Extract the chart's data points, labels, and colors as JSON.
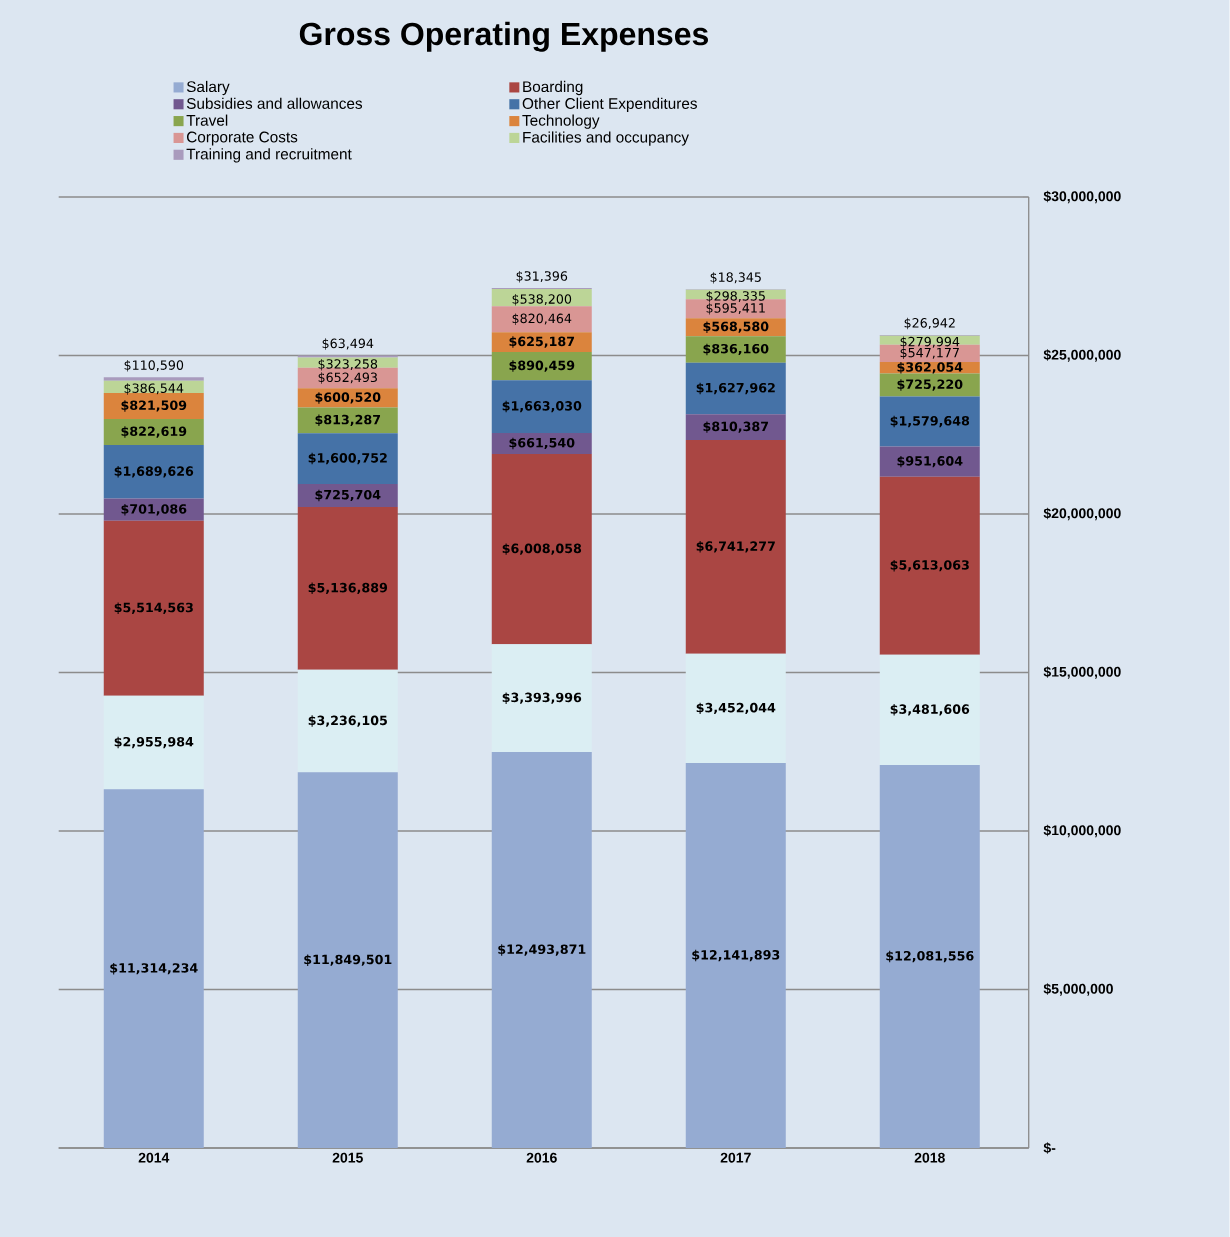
{
  "chart_data": {
    "type": "bar",
    "title": "Gross Operating Expenses",
    "stacked": true,
    "legend": "top",
    "grid": "y",
    "data_labels": true,
    "categories": [
      "2014",
      "2015",
      "2016",
      "2017",
      "2018"
    ],
    "ylim": [
      0,
      30000000
    ],
    "yticks": [
      {
        "value": 0,
        "label": "$-"
      },
      {
        "value": 5000000,
        "label": "$5,000,000"
      },
      {
        "value": 10000000,
        "label": "$10,000,000"
      },
      {
        "value": 15000000,
        "label": "$15,000,000"
      },
      {
        "value": 20000000,
        "label": "$20,000,000"
      },
      {
        "value": 25000000,
        "label": "$25,000,000"
      },
      {
        "value": 30000000,
        "label": "$30,000,000"
      }
    ],
    "series": [
      {
        "name": "Salary",
        "color": "#95abd2",
        "values": [
          11314234,
          11849501,
          12493871,
          12141893,
          12081556
        ],
        "value_labels": [
          "$11,314,234",
          "$11,849,501",
          "$12,493,871",
          "$12,141,893",
          "$12,081,556"
        ]
      },
      {
        "color": "#dbeef3",
        "values": [
          2955984,
          3236105,
          3393996,
          3452044,
          3481606
        ],
        "value_labels": [
          "$2,955,984",
          "$3,236,105",
          "$3,393,996",
          "$3,452,044",
          "$3,481,606"
        ]
      },
      {
        "name": "Boarding",
        "color": "#aa4643",
        "values": [
          5514563,
          5136889,
          6008058,
          6741277,
          5613063
        ],
        "value_labels": [
          "$5,514,563",
          "$5,136,889",
          "$6,008,058",
          "$6,741,277",
          "$5,613,063"
        ]
      },
      {
        "name": "Subsidies and allowances",
        "color": "#71588f",
        "values": [
          701086,
          725704,
          661540,
          810387,
          951604
        ],
        "value_labels": [
          "$701,086",
          "$725,704",
          "$661,540",
          "$810,387",
          "$951,604"
        ]
      },
      {
        "name": "Other Client Expenditures",
        "color": "#4572a7",
        "values": [
          1689626,
          1600752,
          1663030,
          1627962,
          1579648
        ],
        "value_labels": [
          "$1,689,626",
          "$1,600,752",
          "$1,663,030",
          "$1,627,962",
          "$1,579,648"
        ]
      },
      {
        "name": "Travel",
        "color": "#89a54e",
        "values": [
          822619,
          813287,
          890459,
          836160,
          725220
        ],
        "value_labels": [
          "$822,619",
          "$813,287",
          "$890,459",
          "$836,160",
          "$725,220"
        ]
      },
      {
        "name": "Technology",
        "color": "#db843d",
        "values": [
          821509,
          600520,
          625187,
          568580,
          362054
        ],
        "value_labels": [
          "$821,509",
          "$600,520",
          "$625,187",
          "$568,580",
          "$362,054"
        ]
      },
      {
        "name": "Corporate Costs",
        "color": "#d99694",
        "values": [
          null,
          652493,
          820464,
          595411,
          547177
        ],
        "value_labels": [
          null,
          "$652,493",
          "$820,464",
          "$595,411",
          "$547,177"
        ]
      },
      {
        "name": "Facilities and occupancy",
        "color": "#bcd597",
        "values": [
          386544,
          323258,
          538200,
          298335,
          279994
        ],
        "value_labels": [
          "$386,544",
          "$323,258",
          "$538,200",
          "$298,335",
          "$279,994"
        ]
      },
      {
        "name": "Training and recruitment",
        "color": "#a99bbd",
        "values": [
          110590,
          63494,
          31396,
          18345,
          26942
        ],
        "value_labels": [
          "$110,590",
          "$63,494",
          "$31,396",
          "$18,345",
          "$26,942"
        ]
      }
    ]
  }
}
